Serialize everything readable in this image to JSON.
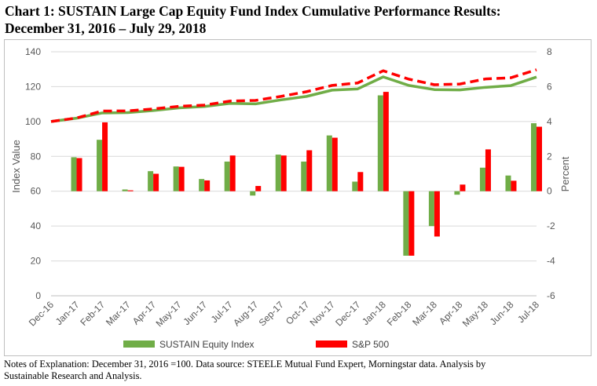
{
  "header": {
    "title_line1": "Chart 1:  SUSTAIN Large Cap Equity Fund Index Cumulative Performance Results:",
    "title_line2": "December 31, 2016 – July 29, 2018"
  },
  "notes": {
    "line1": "Notes of Explanation:  December 31, 2016 =100.  Data source:  STEELE Mutual Fund Expert, Morningstar data. Analysis by",
    "line2": "Sustainable Research and Analysis."
  },
  "colors": {
    "sustain": "#70AD47",
    "sp500": "#FF0000",
    "grid": "#d9d9d9",
    "axis_text": "#595959"
  },
  "chart_data": {
    "type": "bar+line",
    "title": "SUSTAIN Large Cap Equity Fund Index Cumulative Performance Results",
    "categories": [
      "Dec-16",
      "Jan-17",
      "Feb-17",
      "Mar-17",
      "Apr-17",
      "May-17",
      "Jun-17",
      "Jul-17",
      "Aug-17",
      "Sep-17",
      "Oct-17",
      "Nov-17",
      "Dec-17",
      "Jan-18",
      "Feb-18",
      "Mar-18",
      "Apr-18",
      "May-18",
      "Jun-18",
      "Jul-18"
    ],
    "ylabel_left": "Index Value",
    "ylabel_right": "Percent",
    "ylim_left": [
      0,
      140
    ],
    "yticks_left": [
      0,
      20,
      40,
      60,
      80,
      100,
      120,
      140
    ],
    "ylim_right": [
      -6,
      8
    ],
    "yticks_right": [
      -6,
      -4,
      -2,
      0,
      2,
      4,
      6,
      8
    ],
    "grid": true,
    "legend_position": "bottom",
    "bar_series": [
      {
        "name": "SUSTAIN Equity Index",
        "axis": "right",
        "values": [
          null,
          1.95,
          2.95,
          0.1,
          1.15,
          1.42,
          0.7,
          1.7,
          -0.25,
          2.1,
          1.7,
          3.2,
          0.55,
          5.5,
          -3.7,
          -2.0,
          -0.2,
          1.35,
          0.9,
          3.9
        ]
      },
      {
        "name": "S&P 500",
        "axis": "right",
        "values": [
          null,
          1.9,
          3.95,
          0.05,
          1.0,
          1.4,
          0.62,
          2.05,
          0.3,
          2.05,
          2.35,
          3.07,
          1.1,
          5.7,
          -3.7,
          -2.6,
          0.38,
          2.4,
          0.6,
          3.7
        ]
      }
    ],
    "line_series": [
      {
        "name": "SUSTAIN Equity Index",
        "axis": "left",
        "style": "solid",
        "values": [
          100,
          101.9,
          104.9,
          105.1,
          106.3,
          107.8,
          108.6,
          110.4,
          110.1,
          112.4,
          114.4,
          118.0,
          118.7,
          125.6,
          120.7,
          118.3,
          118.1,
          119.6,
          120.6,
          125.5
        ]
      },
      {
        "name": "S&P 500",
        "axis": "left",
        "style": "dashed",
        "values": [
          100,
          102.0,
          106.0,
          106.1,
          107.2,
          108.7,
          109.4,
          111.7,
          112.1,
          114.4,
          117.1,
          120.7,
          122.1,
          129.1,
          124.3,
          121.1,
          121.5,
          124.4,
          125.1,
          129.7
        ]
      }
    ]
  }
}
